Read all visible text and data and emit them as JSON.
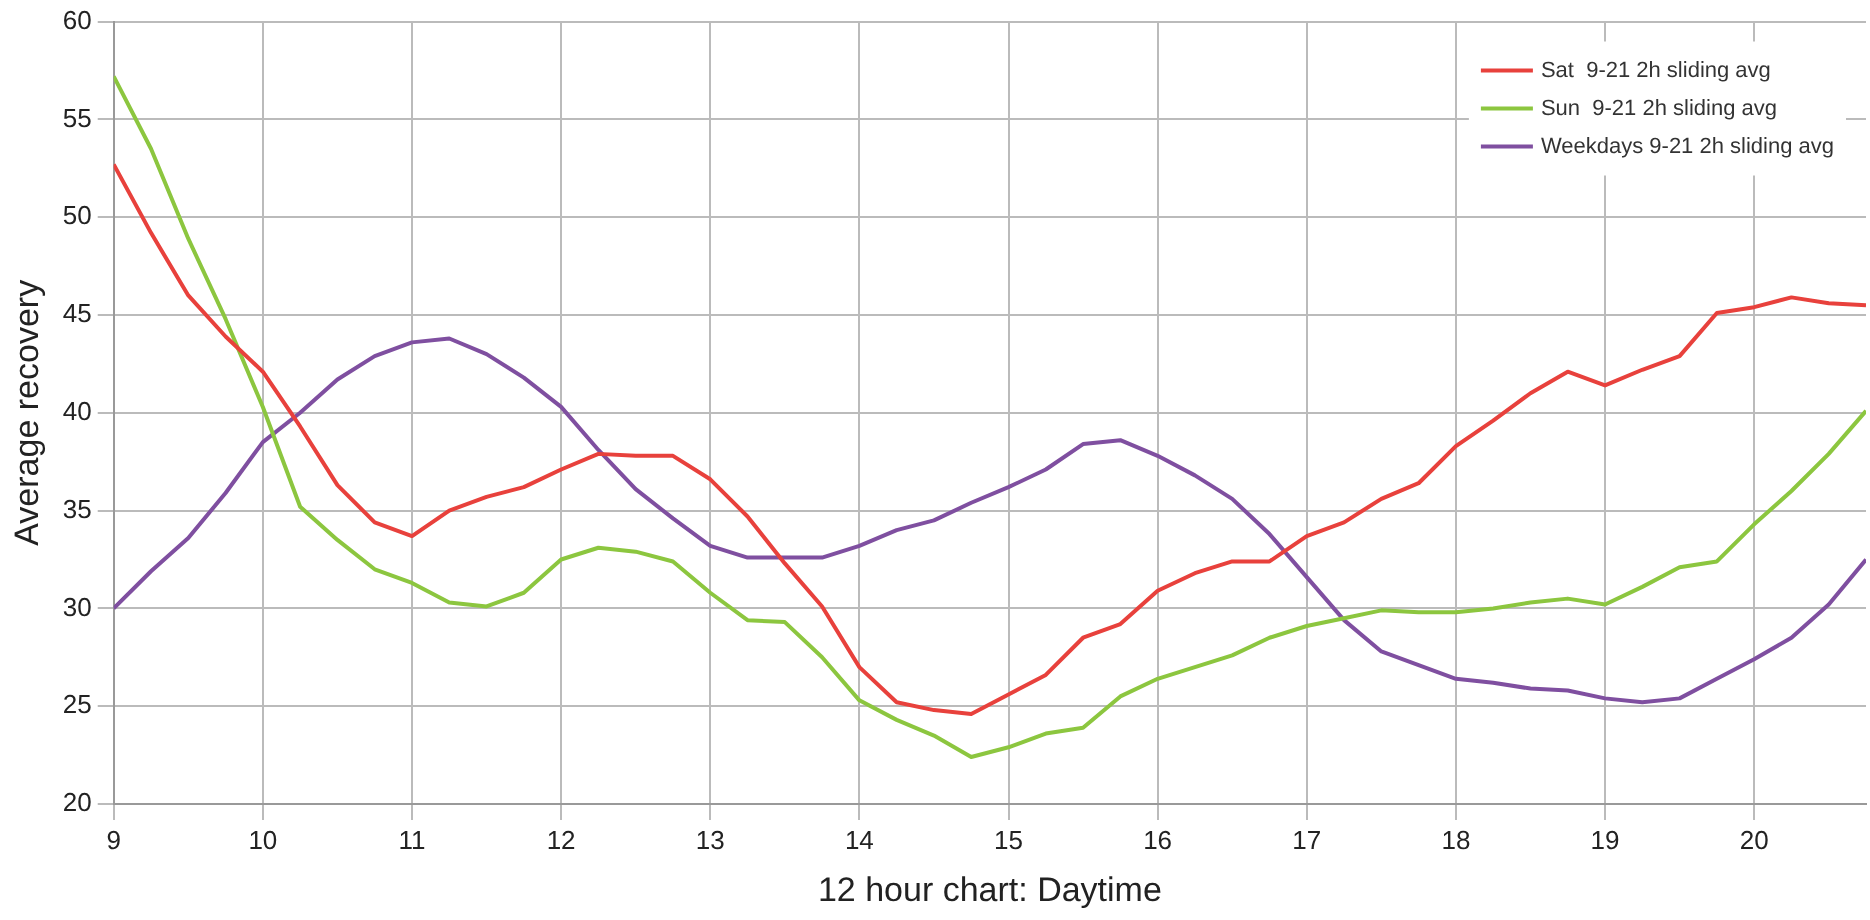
{
  "chart_data": {
    "type": "line",
    "xlabel": "12 hour chart: Daytime",
    "ylabel": "Average recovery",
    "x": [
      9,
      9.25,
      9.5,
      9.75,
      10,
      10.25,
      10.5,
      10.75,
      11,
      11.25,
      11.5,
      11.75,
      12,
      12.25,
      12.5,
      12.75,
      13,
      13.25,
      13.5,
      13.75,
      14,
      14.25,
      14.5,
      14.75,
      15,
      15.25,
      15.5,
      15.75,
      16,
      16.25,
      16.5,
      16.75,
      17,
      17.25,
      17.5,
      17.75,
      18,
      18.25,
      18.5,
      18.75,
      19,
      19.25,
      19.5,
      19.75,
      20,
      20.25,
      20.5,
      20.75
    ],
    "xlim": [
      9,
      20.75
    ],
    "xticks": [
      9,
      10,
      11,
      12,
      13,
      14,
      15,
      16,
      17,
      18,
      19,
      20
    ],
    "ylim": [
      20,
      60
    ],
    "yticks": [
      20,
      25,
      30,
      35,
      40,
      45,
      50,
      55,
      60
    ],
    "grid": true,
    "legend": "top right",
    "marker": "none",
    "line_style": "solid",
    "series": [
      {
        "name": "Sat  9-21 2h sliding avg",
        "color": "#e8413c",
        "values": [
          52.7,
          49.2,
          46.0,
          43.9,
          42.1,
          39.3,
          36.3,
          34.4,
          33.7,
          35.0,
          35.7,
          36.2,
          37.1,
          37.9,
          37.8,
          37.8,
          36.6,
          34.7,
          32.3,
          30.1,
          27.0,
          25.2,
          24.8,
          24.6,
          25.6,
          26.6,
          28.5,
          29.2,
          30.9,
          31.8,
          32.4,
          32.4,
          33.7,
          34.4,
          35.6,
          36.4,
          38.3,
          39.6,
          41.0,
          42.1,
          41.4,
          42.2,
          42.9,
          45.1,
          45.4,
          45.9,
          45.6,
          45.5
        ]
      },
      {
        "name": "Sun  9-21 2h sliding avg",
        "color": "#8cc63f",
        "values": [
          57.2,
          53.5,
          48.9,
          44.8,
          40.3,
          35.2,
          33.5,
          32.0,
          31.3,
          30.3,
          30.1,
          30.8,
          32.5,
          33.1,
          32.9,
          32.4,
          30.8,
          29.4,
          29.3,
          27.5,
          25.3,
          24.3,
          23.5,
          22.4,
          22.9,
          23.6,
          23.9,
          25.5,
          26.4,
          27.0,
          27.6,
          28.5,
          29.1,
          29.5,
          29.9,
          29.8,
          29.8,
          30.0,
          30.3,
          30.5,
          30.2,
          31.1,
          32.1,
          32.4,
          34.3,
          36.0,
          37.9,
          40.1
        ]
      },
      {
        "name": "Weekdays 9-21 2h sliding avg",
        "color": "#7f4fa0",
        "values": [
          30.0,
          31.9,
          33.6,
          35.9,
          38.5,
          40.0,
          41.7,
          42.9,
          43.6,
          43.8,
          43.0,
          41.8,
          40.3,
          38.1,
          36.1,
          34.6,
          33.2,
          32.6,
          32.6,
          32.6,
          33.2,
          34.0,
          34.5,
          35.4,
          36.2,
          37.1,
          38.4,
          38.6,
          37.8,
          36.8,
          35.6,
          33.8,
          31.6,
          29.4,
          27.8,
          27.1,
          26.4,
          26.2,
          25.9,
          25.8,
          25.4,
          25.2,
          25.4,
          26.4,
          27.4,
          28.5,
          30.2,
          32.5
        ]
      }
    ]
  }
}
